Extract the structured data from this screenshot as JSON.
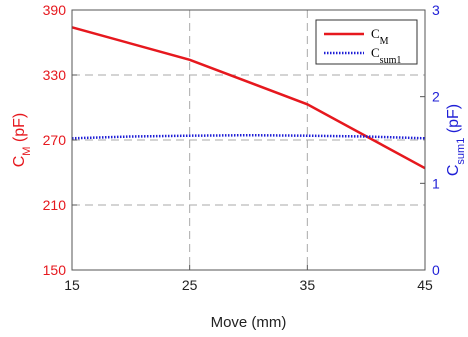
{
  "chart_data": {
    "type": "line",
    "xlabel": "Move (mm)",
    "x_ticks": [
      "15",
      "25",
      "35",
      "45"
    ],
    "xlim": [
      15,
      45
    ],
    "y_left": {
      "label_main": "C",
      "label_sub": "M",
      "label_unit": " (pF)",
      "ticks": [
        "150",
        "210",
        "270",
        "330",
        "390"
      ],
      "lim": [
        150,
        390
      ],
      "color": "#e6181e"
    },
    "y_right": {
      "label_main": "C",
      "label_sub": "sum1",
      "label_unit": " (pF)",
      "ticks": [
        "0",
        "1",
        "2",
        "3"
      ],
      "lim": [
        0,
        3
      ],
      "color": "#1f1fd6"
    },
    "grid": true,
    "legend_position": "top-right",
    "series": [
      {
        "name_main": "C",
        "name_sub": "M",
        "axis": "left",
        "color": "#e6181e",
        "style": "solid",
        "x": [
          15,
          25,
          35,
          45
        ],
        "y": [
          374,
          344,
          303,
          244
        ]
      },
      {
        "name_main": "C",
        "name_sub": "sum1",
        "axis": "right",
        "color": "#1f1fd6",
        "style": "dotted",
        "x": [
          15,
          20,
          25,
          30,
          35,
          40,
          45
        ],
        "y": [
          1.52,
          1.54,
          1.55,
          1.555,
          1.55,
          1.54,
          1.52
        ]
      }
    ]
  }
}
